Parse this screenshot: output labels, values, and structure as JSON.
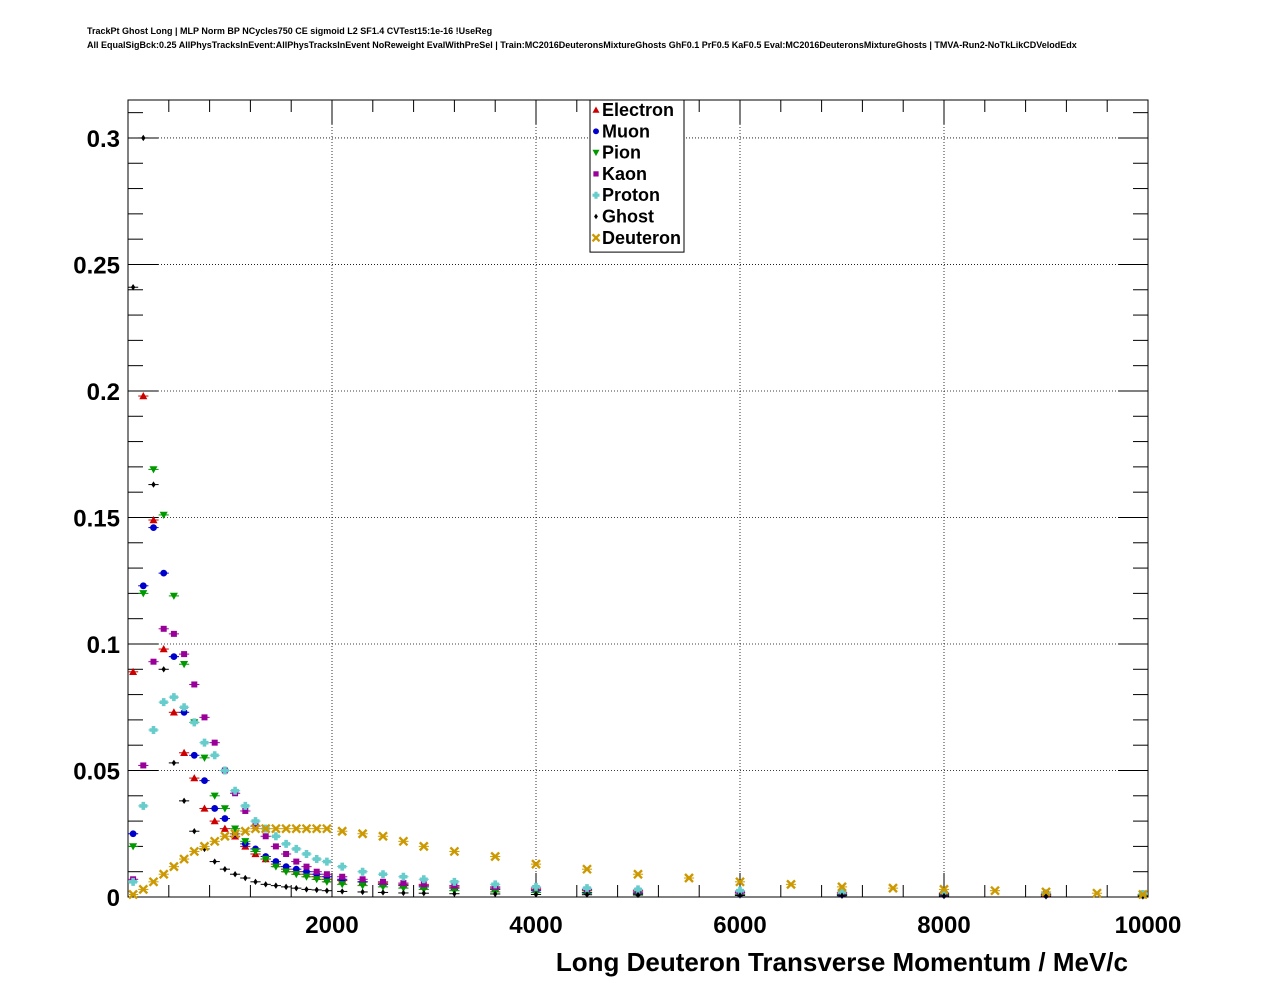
{
  "chart_data": {
    "type": "scatter",
    "title_line1": "TrackPt Ghost Long | MLP Norm BP NCycles750 CE sigmoid L2 SF1.4 CVTest15:1e-16 !UseReg",
    "title_line2": "All EqualSigBck:0.25 AllPhysTracksInEvent:AllPhysTracksInEvent NoReweight EvalWithPreSel | Train:MC2016DeuteronsMixtureGhosts GhF0.1 PrF0.5 KaF0.5 Eval:MC2016DeuteronsMixtureGhosts | TMVA-Run2-NoTkLikCDVelodEdx",
    "xlabel": "Long Deuteron Transverse Momentum / MeV/c",
    "ylabel": "",
    "xlim": [
      0,
      10000
    ],
    "ylim": [
      0,
      0.315
    ],
    "grid": true,
    "legend_position": "top-center",
    "x_ticks": [
      {
        "value": 2000,
        "label": "2000"
      },
      {
        "value": 4000,
        "label": "4000"
      },
      {
        "value": 6000,
        "label": "6000"
      },
      {
        "value": 8000,
        "label": "8000"
      },
      {
        "value": 10000,
        "label": "10000"
      }
    ],
    "y_ticks": [
      {
        "value": 0,
        "label": "0"
      },
      {
        "value": 0.05,
        "label": "0.05"
      },
      {
        "value": 0.1,
        "label": "0.1"
      },
      {
        "value": 0.15,
        "label": "0.15"
      },
      {
        "value": 0.2,
        "label": "0.2"
      },
      {
        "value": 0.25,
        "label": "0.25"
      },
      {
        "value": 0.3,
        "label": "0.3"
      }
    ],
    "series": [
      {
        "name": "Electron",
        "color": "#cc0000",
        "marker": "triangle-up",
        "x": [
          50,
          150,
          250,
          350,
          450,
          550,
          650,
          750,
          850,
          950,
          1050,
          1150,
          1250,
          1350,
          1450,
          1550,
          1650,
          1750,
          1850,
          1950,
          2100,
          2300,
          2500,
          2700,
          2900,
          3200,
          3600,
          4000,
          4500,
          5000,
          6000,
          7000,
          8000,
          9000,
          9950
        ],
        "y": [
          0.089,
          0.198,
          0.149,
          0.098,
          0.073,
          0.057,
          0.047,
          0.035,
          0.03,
          0.027,
          0.024,
          0.02,
          0.017,
          0.015,
          0.013,
          0.011,
          0.01,
          0.009,
          0.008,
          0.007,
          0.0065,
          0.006,
          0.0055,
          0.005,
          0.0045,
          0.004,
          0.0035,
          0.003,
          0.0025,
          0.002,
          0.0018,
          0.0015,
          0.0012,
          0.001,
          0.0008
        ]
      },
      {
        "name": "Muon",
        "color": "#0000cc",
        "marker": "circle",
        "x": [
          50,
          150,
          250,
          350,
          450,
          550,
          650,
          750,
          850,
          950,
          1050,
          1150,
          1250,
          1350,
          1450,
          1550,
          1650,
          1750,
          1850,
          1950,
          2100,
          2300,
          2500,
          2700,
          2900,
          3200,
          3600,
          4000,
          4500,
          5000,
          6000,
          7000,
          8000,
          9000,
          9950
        ],
        "y": [
          0.025,
          0.123,
          0.146,
          0.128,
          0.095,
          0.073,
          0.056,
          0.046,
          0.035,
          0.031,
          0.025,
          0.021,
          0.019,
          0.016,
          0.014,
          0.012,
          0.011,
          0.01,
          0.009,
          0.008,
          0.007,
          0.006,
          0.005,
          0.0045,
          0.004,
          0.0035,
          0.003,
          0.0025,
          0.0018,
          0.0015,
          0.0012,
          0.001,
          0.0009,
          0.0008,
          0.0007
        ]
      },
      {
        "name": "Pion",
        "color": "#009900",
        "marker": "triangle-down",
        "x": [
          50,
          150,
          250,
          350,
          450,
          550,
          650,
          750,
          850,
          950,
          1050,
          1150,
          1250,
          1350,
          1450,
          1550,
          1650,
          1750,
          1850,
          1950,
          2100,
          2300,
          2500,
          2700,
          2900,
          3200,
          3600,
          4000,
          4500,
          5000,
          6000,
          7000,
          8000,
          9000,
          9950
        ],
        "y": [
          0.02,
          0.12,
          0.169,
          0.151,
          0.119,
          0.092,
          0.069,
          0.055,
          0.04,
          0.035,
          0.027,
          0.022,
          0.018,
          0.015,
          0.012,
          0.01,
          0.009,
          0.008,
          0.007,
          0.006,
          0.005,
          0.0045,
          0.004,
          0.0035,
          0.003,
          0.0025,
          0.002,
          0.0018,
          0.0015,
          0.0012,
          0.001,
          0.0008,
          0.0007,
          0.0006,
          0.0005
        ]
      },
      {
        "name": "Kaon",
        "color": "#990099",
        "marker": "square",
        "x": [
          50,
          150,
          250,
          350,
          450,
          550,
          650,
          750,
          850,
          950,
          1050,
          1150,
          1250,
          1350,
          1450,
          1550,
          1650,
          1750,
          1850,
          1950,
          2100,
          2300,
          2500,
          2700,
          2900,
          3200,
          3600,
          4000,
          4500,
          5000,
          6000,
          7000,
          8000,
          9000,
          9950
        ],
        "y": [
          0.007,
          0.052,
          0.093,
          0.106,
          0.104,
          0.096,
          0.084,
          0.071,
          0.061,
          0.05,
          0.041,
          0.034,
          0.028,
          0.024,
          0.02,
          0.017,
          0.014,
          0.012,
          0.01,
          0.009,
          0.008,
          0.007,
          0.006,
          0.0055,
          0.005,
          0.0045,
          0.004,
          0.0035,
          0.003,
          0.0025,
          0.002,
          0.0018,
          0.0015,
          0.0012,
          0.001
        ]
      },
      {
        "name": "Proton",
        "color": "#66cccc",
        "marker": "cross",
        "x": [
          50,
          150,
          250,
          350,
          450,
          550,
          650,
          750,
          850,
          950,
          1050,
          1150,
          1250,
          1350,
          1450,
          1550,
          1650,
          1750,
          1850,
          1950,
          2100,
          2300,
          2500,
          2700,
          2900,
          3200,
          3600,
          4000,
          4500,
          5000,
          6000,
          7000,
          8000,
          9000,
          9950
        ],
        "y": [
          0.006,
          0.036,
          0.066,
          0.077,
          0.079,
          0.075,
          0.069,
          0.061,
          0.056,
          0.05,
          0.042,
          0.036,
          0.03,
          0.027,
          0.024,
          0.021,
          0.019,
          0.017,
          0.015,
          0.014,
          0.012,
          0.01,
          0.009,
          0.008,
          0.007,
          0.006,
          0.005,
          0.004,
          0.0035,
          0.003,
          0.0025,
          0.002,
          0.0018,
          0.0015,
          0.0012
        ]
      },
      {
        "name": "Ghost",
        "color": "#000000",
        "marker": "diamond",
        "x": [
          50,
          150,
          250,
          350,
          450,
          550,
          650,
          750,
          850,
          950,
          1050,
          1150,
          1250,
          1350,
          1450,
          1550,
          1650,
          1750,
          1850,
          1950,
          2100,
          2300,
          2500,
          2700,
          2900,
          3200,
          3600,
          4000,
          4500,
          5000,
          6000,
          7000,
          8000,
          9000,
          9950
        ],
        "y": [
          0.241,
          0.3,
          0.163,
          0.09,
          0.053,
          0.038,
          0.026,
          0.019,
          0.014,
          0.011,
          0.009,
          0.0075,
          0.006,
          0.005,
          0.0045,
          0.004,
          0.0035,
          0.003,
          0.0028,
          0.0025,
          0.0022,
          0.002,
          0.0018,
          0.0016,
          0.0015,
          0.0013,
          0.0012,
          0.001,
          0.0009,
          0.0008,
          0.0006,
          0.0005,
          0.0004,
          0.0003,
          0.0003
        ]
      },
      {
        "name": "Deuteron",
        "color": "#cc9900",
        "marker": "x",
        "x": [
          50,
          150,
          250,
          350,
          450,
          550,
          650,
          750,
          850,
          950,
          1050,
          1150,
          1250,
          1350,
          1450,
          1550,
          1650,
          1750,
          1850,
          1950,
          2100,
          2300,
          2500,
          2700,
          2900,
          3200,
          3600,
          4000,
          4500,
          5000,
          5500,
          6000,
          6500,
          7000,
          7500,
          8000,
          8500,
          9000,
          9500,
          9950
        ],
        "y": [
          0.001,
          0.003,
          0.006,
          0.009,
          0.012,
          0.015,
          0.018,
          0.02,
          0.022,
          0.024,
          0.025,
          0.026,
          0.027,
          0.027,
          0.027,
          0.027,
          0.027,
          0.027,
          0.027,
          0.027,
          0.026,
          0.025,
          0.024,
          0.022,
          0.02,
          0.018,
          0.016,
          0.013,
          0.011,
          0.009,
          0.0075,
          0.006,
          0.005,
          0.004,
          0.0035,
          0.003,
          0.0025,
          0.002,
          0.0015,
          0.001
        ]
      }
    ]
  }
}
